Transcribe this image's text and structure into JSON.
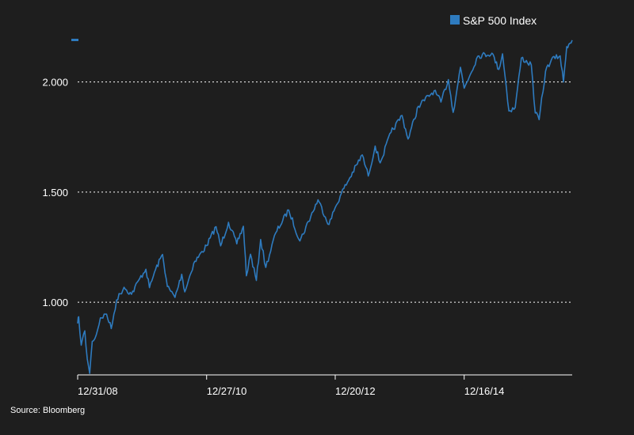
{
  "chart_data": {
    "type": "line",
    "legend": {
      "label": "S&P 500 Index",
      "placement": "top-right"
    },
    "source": "Source: Bloomberg",
    "grid": {
      "horizontal": true,
      "style": "dotted"
    },
    "ylim": [
      670,
      2200
    ],
    "y_ticks": [
      {
        "value": 1000,
        "label": "1.000"
      },
      {
        "value": 1500,
        "label": "1.500"
      },
      {
        "value": 2000,
        "label": "2.000"
      }
    ],
    "x_ticks": [
      {
        "date": "2008-12-31",
        "label": "12/31/08"
      },
      {
        "date": "2010-12-27",
        "label": "12/27/10"
      },
      {
        "date": "2012-12-20",
        "label": "12/20/12"
      },
      {
        "date": "2014-12-16",
        "label": "12/16/14"
      }
    ],
    "xlim": [
      "2008-12-31",
      "2016-08-15"
    ],
    "colors": {
      "series": "#2e7bbf",
      "background": "#1e1e1e",
      "axis": "#ffffff",
      "grid": "#ffffff"
    },
    "series": [
      {
        "name": "S&P 500 Index",
        "x": [
          "2008-12-31",
          "2009-01-06",
          "2009-01-20",
          "2009-02-09",
          "2009-02-23",
          "2009-03-09",
          "2009-03-23",
          "2009-04-15",
          "2009-05-08",
          "2009-06-12",
          "2009-07-08",
          "2009-08-07",
          "2009-09-18",
          "2009-10-30",
          "2009-12-15",
          "2010-01-19",
          "2010-02-08",
          "2010-03-15",
          "2010-04-23",
          "2010-05-20",
          "2010-06-08",
          "2010-07-02",
          "2010-08-09",
          "2010-08-26",
          "2010-10-15",
          "2010-12-27",
          "2011-02-18",
          "2011-03-16",
          "2011-04-29",
          "2011-06-15",
          "2011-07-22",
          "2011-08-08",
          "2011-08-31",
          "2011-10-03",
          "2011-10-27",
          "2011-11-25",
          "2012-01-20",
          "2012-04-02",
          "2012-06-04",
          "2012-09-14",
          "2012-11-15",
          "2012-12-20",
          "2013-01-24",
          "2013-05-21",
          "2013-06-24",
          "2013-08-02",
          "2013-08-30",
          "2013-10-30",
          "2013-12-31",
          "2014-02-03",
          "2014-04-02",
          "2014-06-30",
          "2014-08-07",
          "2014-09-18",
          "2014-10-15",
          "2014-11-25",
          "2014-12-16",
          "2015-03-02",
          "2015-05-21",
          "2015-06-29",
          "2015-07-20",
          "2015-08-25",
          "2015-09-29",
          "2015-11-03",
          "2015-12-29",
          "2016-01-20",
          "2016-02-11",
          "2016-03-18",
          "2016-04-20",
          "2016-06-08",
          "2016-06-27",
          "2016-07-15",
          "2016-08-15"
        ],
        "values": [
          903,
          934,
          805,
          870,
          743,
          677,
          822,
          852,
          929,
          946,
          880,
          1010,
          1068,
          1036,
          1107,
          1150,
          1066,
          1150,
          1217,
          1071,
          1050,
          1022,
          1127,
          1047,
          1176,
          1257,
          1343,
          1256,
          1363,
          1265,
          1345,
          1120,
          1218,
          1099,
          1285,
          1158,
          1315,
          1419,
          1278,
          1465,
          1353,
          1430,
          1495,
          1669,
          1573,
          1709,
          1633,
          1771,
          1848,
          1741,
          1890,
          1960,
          1909,
          2011,
          1862,
          2067,
          1972,
          2117,
          2131,
          2057,
          2128,
          1868,
          1884,
          2109,
          2078,
          1859,
          1829,
          2049,
          2102,
          2119,
          2000,
          2161,
          2190
        ]
      }
    ]
  }
}
